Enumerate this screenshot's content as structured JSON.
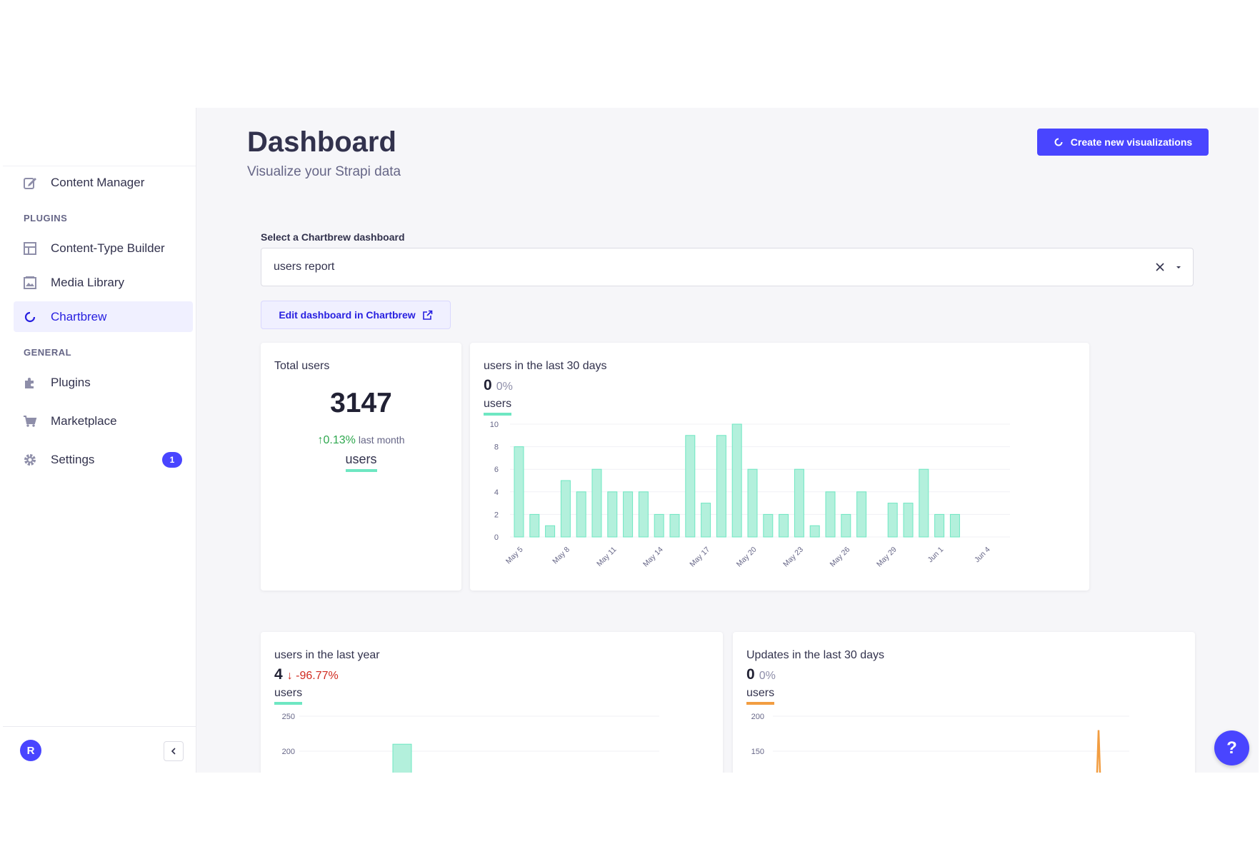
{
  "sidebar": {
    "content_manager": "Content Manager",
    "plugins_label": "PLUGINS",
    "content_type_builder": "Content-Type Builder",
    "media_library": "Media Library",
    "chartbrew": "Chartbrew",
    "general_label": "GENERAL",
    "plugins": "Plugins",
    "marketplace": "Marketplace",
    "settings": "Settings",
    "settings_badge": "1",
    "avatar_initial": "R"
  },
  "header": {
    "title": "Dashboard",
    "subtitle": "Visualize your Strapi data",
    "create_button": "Create new visualizations"
  },
  "dashboard_select": {
    "label": "Select a Chartbrew dashboard",
    "value": "users report",
    "edit_button": "Edit dashboard in Chartbrew"
  },
  "cards": {
    "total_users": {
      "title": "Total users",
      "value": "3147",
      "growth": "0.13%",
      "growth_period": "last month",
      "series": "users"
    },
    "users_30_days": {
      "title": "users in the last 30 days",
      "value": "0",
      "change": "0%",
      "series": "users"
    },
    "users_last_year": {
      "title": "users in the last year",
      "value": "4",
      "change": "-96.77%",
      "series": "users"
    },
    "updates_30_days": {
      "title": "Updates in the last 30 days",
      "value": "0",
      "change": "0%",
      "series": "users"
    }
  },
  "help_label": "?",
  "colors": {
    "accent": "#4945ff",
    "bar_fill": "#b3f0dc",
    "bar_stroke": "#6ee7c2",
    "orange_series": "#f29d41",
    "negative": "#d02b20",
    "positive": "#2fa84f"
  },
  "chart_data": [
    {
      "type": "bar",
      "title": "users in the last 30 days",
      "series": [
        {
          "name": "users",
          "values": [
            8,
            2,
            1,
            5,
            4,
            6,
            4,
            4,
            4,
            2,
            2,
            9,
            3,
            9,
            10,
            6,
            2,
            2,
            6,
            1,
            4,
            2,
            4,
            0,
            3,
            3,
            6,
            2,
            2,
            0,
            0
          ]
        }
      ],
      "ylim": [
        0,
        10
      ],
      "yticks": [
        0,
        2,
        4,
        6,
        8,
        10
      ],
      "xticks": [
        "May 5",
        "May 8",
        "May 11",
        "May 14",
        "May 17",
        "May 20",
        "May 23",
        "May 26",
        "May 29",
        "Jun 1",
        "Jun 4"
      ],
      "grid": true
    },
    {
      "type": "bar",
      "title": "users in the last year",
      "series": [
        {
          "name": "users",
          "values": [
            210
          ]
        }
      ],
      "yticks": [
        200,
        250
      ]
    },
    {
      "type": "line",
      "title": "Updates in the last 30 days",
      "series": [
        {
          "name": "users",
          "values": [
            0,
            0,
            0,
            0,
            180,
            0
          ]
        }
      ],
      "yticks": [
        150,
        200
      ]
    }
  ]
}
